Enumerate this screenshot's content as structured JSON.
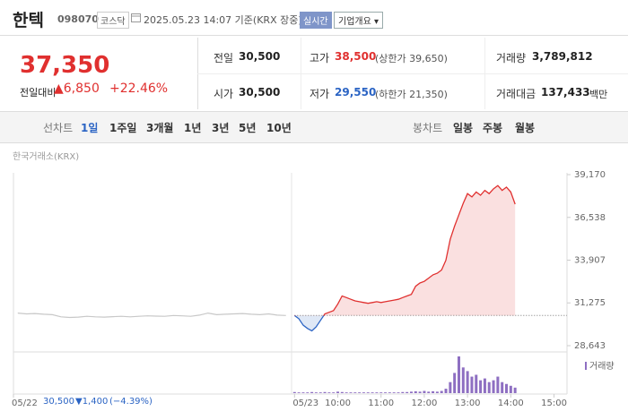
{
  "header": {
    "name": "한텍",
    "code": "098070",
    "market": "코스닥",
    "timestamp": "2025.05.23 14:07 기준(KRX 장중)",
    "realtime": "실시간",
    "company_button": "기업개요 ▾"
  },
  "quote": {
    "price": "37,350",
    "change_label": "전일대비",
    "change": "▲6,850",
    "change_pct": "+22.46%",
    "items": [
      {
        "label": "전일",
        "value": "30,500"
      },
      {
        "label": "고가",
        "value": "38,500",
        "note": "(상한가 39,650)"
      },
      {
        "label": "거래량",
        "value": "3,789,812"
      },
      {
        "label": "시가",
        "value": "30,500"
      },
      {
        "label": "저가",
        "value": "29,550",
        "note": "(하한가 21,350)"
      },
      {
        "label": "거래대금",
        "value": "137,433",
        "note": "백만"
      }
    ]
  },
  "tabs": {
    "line_label": "선차트",
    "periods": [
      "1일",
      "1주일",
      "3개월",
      "1년",
      "3년",
      "5년",
      "10년"
    ],
    "candle_label": "봉차트",
    "candles": [
      "일봉",
      "주봉",
      "월봉"
    ]
  },
  "chart": {
    "source": "한국거래소(KRX)",
    "volume_label": "거래량",
    "ylim": [
      28643,
      39170
    ],
    "yticks": [
      {
        "value": 28643,
        "label": "28,643"
      },
      {
        "value": 31275,
        "label": "31,275"
      },
      {
        "value": 33907,
        "label": "33,907"
      },
      {
        "value": 36538,
        "label": "36,538"
      },
      {
        "value": 39170,
        "label": "39,170"
      }
    ],
    "xlim": [
      -6.5,
      6.3
    ],
    "xticks": [
      {
        "value": -6.5,
        "label": "05/22"
      },
      {
        "value": 0,
        "label": "05/23"
      },
      {
        "value": 1,
        "label": "10:00"
      },
      {
        "value": 2,
        "label": "11:00"
      },
      {
        "value": 3,
        "label": "12:00"
      },
      {
        "value": 4,
        "label": "13:00"
      },
      {
        "value": 5,
        "label": "14:00"
      },
      {
        "value": 6,
        "label": "15:00"
      }
    ],
    "base_price": 30500,
    "prev": {
      "color": "#c8c8c8",
      "x": [
        -6.4,
        -6.2,
        -6.0,
        -5.8,
        -5.6,
        -5.4,
        -5.2,
        -5.0,
        -4.8,
        -4.6,
        -4.4,
        -4.2,
        -4.0,
        -3.8,
        -3.6,
        -3.4,
        -3.2,
        -3.0,
        -2.8,
        -2.6,
        -2.4,
        -2.2,
        -2.0,
        -1.8,
        -1.6,
        -1.4,
        -1.2,
        -1.0,
        -0.8,
        -0.6,
        -0.4,
        -0.2
      ],
      "values": [
        30650,
        30600,
        30620,
        30580,
        30550,
        30420,
        30380,
        30400,
        30450,
        30420,
        30400,
        30430,
        30450,
        30420,
        30450,
        30480,
        30460,
        30450,
        30500,
        30480,
        30450,
        30520,
        30650,
        30550,
        30580,
        30600,
        30620,
        30580,
        30550,
        30600,
        30520,
        30500
      ]
    },
    "today": {
      "up_color": "#e0302f",
      "down_color": "#2b64c4",
      "x": [
        0,
        0.1,
        0.2,
        0.3,
        0.4,
        0.5,
        0.6,
        0.7,
        0.8,
        0.9,
        1.0,
        1.1,
        1.2,
        1.3,
        1.4,
        1.5,
        1.6,
        1.7,
        1.8,
        1.9,
        2.0,
        2.1,
        2.2,
        2.3,
        2.4,
        2.5,
        2.6,
        2.7,
        2.8,
        2.9,
        3.0,
        3.1,
        3.2,
        3.3,
        3.4,
        3.5,
        3.6,
        3.7,
        3.8,
        3.9,
        4.0,
        4.1,
        4.2,
        4.3,
        4.4,
        4.5,
        4.6,
        4.7,
        4.8,
        4.9,
        5.0,
        5.1
      ],
      "values": [
        30500,
        30300,
        29900,
        29700,
        29550,
        29800,
        30200,
        30600,
        30700,
        30800,
        31200,
        31700,
        31600,
        31500,
        31400,
        31350,
        31300,
        31250,
        31300,
        31350,
        31300,
        31350,
        31400,
        31450,
        31500,
        31600,
        31700,
        31800,
        32300,
        32500,
        32600,
        32800,
        33000,
        33100,
        33300,
        33900,
        35200,
        36000,
        36700,
        37400,
        38000,
        37800,
        38100,
        37900,
        38200,
        38000,
        38300,
        38500,
        38200,
        38400,
        38100,
        37350
      ],
      "volume_color": "#8e6fc2",
      "volume": [
        3,
        2,
        2,
        2,
        3,
        2,
        2,
        3,
        2,
        2,
        4,
        3,
        2,
        2,
        2,
        2,
        2,
        2,
        2,
        2,
        2,
        2,
        2,
        2,
        2,
        3,
        3,
        4,
        5,
        4,
        6,
        4,
        5,
        4,
        6,
        12,
        30,
        55,
        100,
        70,
        60,
        45,
        50,
        35,
        40,
        30,
        35,
        45,
        30,
        25,
        20,
        15
      ]
    },
    "footer": {
      "price": "30,500",
      "change": "▼1,400",
      "change_pct": "(−4.39%)"
    }
  }
}
